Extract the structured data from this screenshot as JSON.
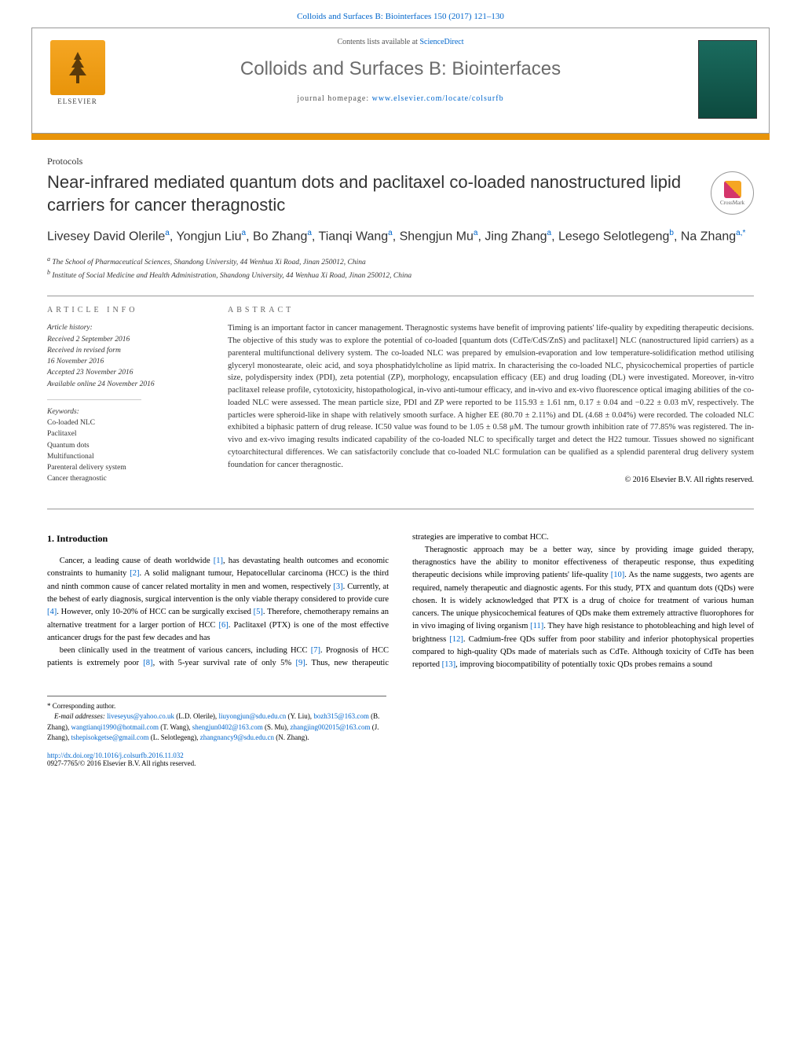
{
  "top_link": {
    "prefix": "",
    "journal": "Colloids and Surfaces B: Biointerfaces 150 (2017) 121–130"
  },
  "header": {
    "elsevier": "ELSEVIER",
    "contents_prefix": "Contents lists available at ",
    "contents_link": "ScienceDirect",
    "journal_name": "Colloids and Surfaces B: Biointerfaces",
    "homepage_prefix": "journal homepage: ",
    "homepage_link": "www.elsevier.com/locate/colsurfb"
  },
  "article": {
    "type": "Protocols",
    "title": "Near-infrared mediated quantum dots and paclitaxel co-loaded nanostructured lipid carriers for cancer theragnostic",
    "crossmark": "CrossMark",
    "authors_html": "Livesey David Olerile<sup>a</sup>, Yongjun Liu<sup>a</sup>, Bo Zhang<sup>a</sup>, Tianqi Wang<sup>a</sup>, Shengjun Mu<sup>a</sup>, Jing Zhang<sup>a</sup>, Lesego Selotlegeng<sup>b</sup>, Na Zhang<sup>a,*</sup>",
    "affiliations": [
      {
        "sup": "a",
        "text": "The School of Pharmaceutical Sciences, Shandong University, 44 Wenhua Xi Road, Jinan 250012, China"
      },
      {
        "sup": "b",
        "text": "Institute of Social Medicine and Health Administration, Shandong University, 44 Wenhua Xi Road, Jinan 250012, China"
      }
    ]
  },
  "info": {
    "article_info_label": "ARTICLE INFO",
    "history_label": "Article history:",
    "history": [
      "Received 2 September 2016",
      "Received in revised form",
      "16 November 2016",
      "Accepted 23 November 2016",
      "Available online 24 November 2016"
    ],
    "keywords_label": "Keywords:",
    "keywords": [
      "Co-loaded NLC",
      "Paclitaxel",
      "Quantum dots",
      "Multifunctional",
      "Parenteral delivery system",
      "Cancer theragnostic"
    ]
  },
  "abstract": {
    "label": "ABSTRACT",
    "text": "Timing is an important factor in cancer management. Theragnostic systems have benefit of improving patients' life-quality by expediting therapeutic decisions. The objective of this study was to explore the potential of co-loaded [quantum dots (CdTe/CdS/ZnS) and paclitaxel] NLC (nanostructured lipid carriers) as a parenteral multifunctional delivery system. The co-loaded NLC was prepared by emulsion-evaporation and low temperature-solidification method utilising glyceryl monostearate, oleic acid, and soya phosphatidylcholine as lipid matrix. In characterising the co-loaded NLC, physicochemical properties of particle size, polydispersity index (PDI), zeta potential (ZP), morphology, encapsulation efficacy (EE) and drug loading (DL) were investigated. Moreover, in-vitro paclitaxel release profile, cytotoxicity, histopathological, in-vivo anti-tumour efficacy, and in-vivo and ex-vivo fluorescence optical imaging abilities of the co-loaded NLC were assessed. The mean particle size, PDI and ZP were reported to be 115.93 ± 1.61 nm, 0.17 ± 0.04 and −0.22 ± 0.03 mV, respectively. The particles were spheroid-like in shape with relatively smooth surface. A higher EE (80.70 ± 2.11%) and DL (4.68 ± 0.04%) were recorded. The coloaded NLC exhibited a biphasic pattern of drug release. IC50 value was found to be 1.05 ± 0.58 μM. The tumour growth inhibition rate of 77.85% was registered. The in-vivo and ex-vivo imaging results indicated capability of the co-loaded NLC to specifically target and detect the H22 tumour. Tissues showed no significant cytoarchitectural differences. We can satisfactorily conclude that co-loaded NLC formulation can be qualified as a splendid parenteral drug delivery system foundation for cancer theragnostic.",
    "copyright": "© 2016 Elsevier B.V. All rights reserved."
  },
  "body": {
    "section_number": "1.",
    "section_title": "Introduction",
    "paragraphs": [
      "Cancer, a leading cause of death worldwide [1], has devastating health outcomes and economic constraints to humanity [2]. A solid malignant tumour, Hepatocellular carcinoma (HCC) is the third and ninth common cause of cancer related mortality in men and women, respectively [3]. Currently, at the behest of early diagnosis, surgical intervention is the only viable therapy considered to provide cure [4]. However, only 10-20% of HCC can be surgically excised [5]. Therefore, chemotherapy remains an alternative treatment for a larger portion of HCC [6]. Paclitaxel (PTX) is one of the most effective anticancer drugs for the past few decades and has",
      "been clinically used in the treatment of various cancers, including HCC [7]. Prognosis of HCC patients is extremely poor [8], with 5-year survival rate of only 5% [9]. Thus, new therapeutic strategies are imperative to combat HCC.",
      "Theragnostic approach may be a better way, since by providing image guided therapy, theragnostics have the ability to monitor effectiveness of therapeutic response, thus expediting therapeutic decisions while improving patients' life-quality [10]. As the name suggests, two agents are required, namely therapeutic and diagnostic agents. For this study, PTX and quantum dots (QDs) were chosen. It is widely acknowledged that PTX is a drug of choice for treatment of various human cancers. The unique physicochemical features of QDs make them extremely attractive fluorophores for in vivo imaging of living organism [11]. They have high resistance to photobleaching and high level of brightness [12]. Cadmium-free QDs suffer from poor stability and inferior photophysical properties compared to high-quality QDs made of materials such as CdTe. Although toxicity of CdTe has been reported [13], improving biocompatibility of potentially toxic QDs probes remains a sound"
    ]
  },
  "footnotes": {
    "corresponding": "* Corresponding author.",
    "emails_label": "E-mail addresses:",
    "emails": [
      {
        "addr": "liveseyus@yahoo.co.uk",
        "name": "(L.D. Olerile),"
      },
      {
        "addr": "liuyongjun@sdu.edu.cn",
        "name": "(Y. Liu),"
      },
      {
        "addr": "bozh315@163.com",
        "name": "(B. Zhang),"
      },
      {
        "addr": "wangtianqi1990@hotmail.com",
        "name": "(T. Wang),"
      },
      {
        "addr": "shengjun0402@163.com",
        "name": "(S. Mu),"
      },
      {
        "addr": "zhangjing002015@163.com",
        "name": "(J. Zhang),"
      },
      {
        "addr": "tshepisokgetse@gmail.com",
        "name": "(L. Selotlegeng),"
      },
      {
        "addr": "zhangnancy9@sdu.edu.cn",
        "name": "(N. Zhang)."
      }
    ],
    "doi": "http://dx.doi.org/10.1016/j.colsurfb.2016.11.032",
    "issn": "0927-7765/© 2016 Elsevier B.V. All rights reserved."
  },
  "colors": {
    "link": "#0066cc",
    "orange": "#e8940a",
    "gray_text": "#6b6b6b"
  }
}
